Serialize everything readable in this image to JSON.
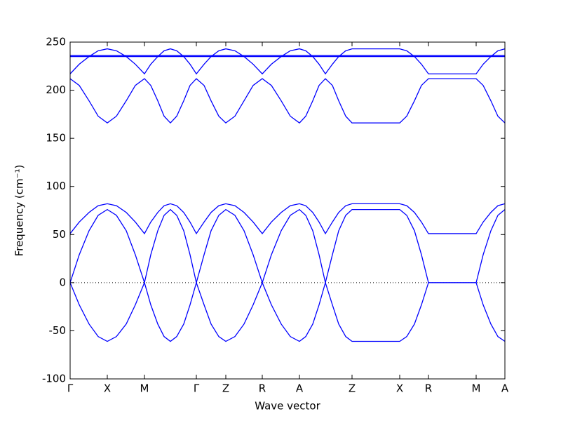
{
  "chart_data": {
    "type": "line",
    "xlabel": "Wave vector",
    "ylabel": "Frequency (cm⁻¹)",
    "xlim": [
      0,
      620
    ],
    "ylim": [
      -100,
      250
    ],
    "yticks": [
      -100,
      -50,
      0,
      50,
      100,
      150,
      200,
      250
    ],
    "xticks": [
      {
        "value": 0,
        "label": "Γ"
      },
      {
        "value": 53,
        "label": "X"
      },
      {
        "value": 106,
        "label": "M"
      },
      {
        "value": 180,
        "label": "Γ"
      },
      {
        "value": 222,
        "label": "Z"
      },
      {
        "value": 274,
        "label": "R"
      },
      {
        "value": 327,
        "label": "A"
      },
      {
        "value": 402,
        "label": "Z"
      },
      {
        "value": 470,
        "label": "X"
      },
      {
        "value": 511,
        "label": "R"
      },
      {
        "value": 579,
        "label": "M"
      },
      {
        "value": 620,
        "label": "A"
      }
    ],
    "zero_line": 0,
    "x": [
      0,
      13,
      27,
      40,
      53,
      66,
      80,
      93,
      106,
      115,
      125,
      134,
      143,
      152,
      162,
      171,
      180,
      191,
      201,
      212,
      222,
      235,
      248,
      261,
      274,
      287,
      301,
      314,
      327,
      336,
      346,
      355,
      364,
      374,
      383,
      393,
      402,
      470,
      480,
      491,
      501,
      511,
      579,
      589,
      600,
      610,
      620
    ],
    "series": [
      {
        "color": "#0000ff",
        "values": [
          0,
          29,
          54,
          70,
          76,
          70,
          54,
          29,
          0,
          29,
          54,
          70,
          76,
          70,
          54,
          29,
          0,
          29,
          54,
          70,
          76,
          70,
          54,
          29,
          0,
          29,
          54,
          70,
          76,
          70,
          54,
          29,
          0,
          29,
          54,
          70,
          76,
          76,
          70,
          54,
          29,
          0,
          0,
          29,
          54,
          70,
          76
        ]
      },
      {
        "color": "#0000ff",
        "values": [
          0,
          -23,
          -43,
          -56,
          -61,
          -56,
          -43,
          -23,
          0,
          -23,
          -43,
          -56,
          -61,
          -56,
          -43,
          -23,
          0,
          -23,
          -43,
          -56,
          -61,
          -56,
          -43,
          -23,
          0,
          -23,
          -43,
          -56,
          -61,
          -56,
          -43,
          -23,
          0,
          -23,
          -43,
          -56,
          -61,
          -61,
          -56,
          -43,
          -23,
          0,
          0,
          -23,
          -43,
          -56,
          -61
        ]
      },
      {
        "color": "#0000ff",
        "values": [
          51,
          63,
          73,
          80,
          82,
          80,
          73,
          63,
          51,
          63,
          73,
          80,
          82,
          80,
          73,
          63,
          51,
          63,
          73,
          80,
          82,
          80,
          73,
          63,
          51,
          63,
          73,
          80,
          82,
          80,
          73,
          63,
          51,
          63,
          73,
          80,
          82,
          82,
          80,
          73,
          63,
          51,
          51,
          63,
          73,
          80,
          82
        ]
      },
      {
        "color": "#0000ff",
        "values": [
          212,
          205,
          189,
          173,
          166,
          173,
          189,
          205,
          212,
          205,
          189,
          173,
          166,
          173,
          189,
          205,
          212,
          205,
          189,
          173,
          166,
          173,
          189,
          205,
          212,
          205,
          189,
          173,
          166,
          173,
          189,
          205,
          212,
          205,
          189,
          173,
          166,
          166,
          173,
          189,
          205,
          212,
          212,
          205,
          189,
          173,
          166
        ]
      },
      {
        "color": "#0000ff",
        "values": [
          217,
          227,
          235,
          241,
          243,
          241,
          235,
          227,
          217,
          227,
          235,
          241,
          243,
          241,
          235,
          227,
          217,
          227,
          235,
          241,
          243,
          241,
          235,
          227,
          217,
          227,
          235,
          241,
          243,
          241,
          235,
          227,
          217,
          227,
          235,
          241,
          243,
          243,
          241,
          235,
          227,
          217,
          217,
          227,
          235,
          241,
          243
        ]
      },
      {
        "color": "#0000ff",
        "values": [
          236,
          236,
          236,
          236,
          236,
          236,
          236,
          236,
          236,
          236,
          236,
          236,
          236,
          236,
          236,
          236,
          236,
          236,
          236,
          236,
          236,
          236,
          236,
          236,
          236,
          236,
          236,
          236,
          236,
          236,
          236,
          236,
          236,
          236,
          236,
          236,
          236,
          236,
          236,
          236,
          236,
          236,
          236,
          236,
          236,
          236,
          236
        ]
      },
      {
        "color": "#0000ff",
        "values": [
          235,
          235,
          235,
          235,
          235,
          235,
          235,
          235,
          235,
          235,
          235,
          235,
          235,
          235,
          235,
          235,
          235,
          235,
          235,
          235,
          235,
          235,
          235,
          235,
          235,
          235,
          235,
          235,
          235,
          235,
          235,
          235,
          235,
          235,
          235,
          235,
          235,
          235,
          235,
          235,
          235,
          235,
          235,
          235,
          235,
          235,
          235
        ]
      }
    ]
  }
}
